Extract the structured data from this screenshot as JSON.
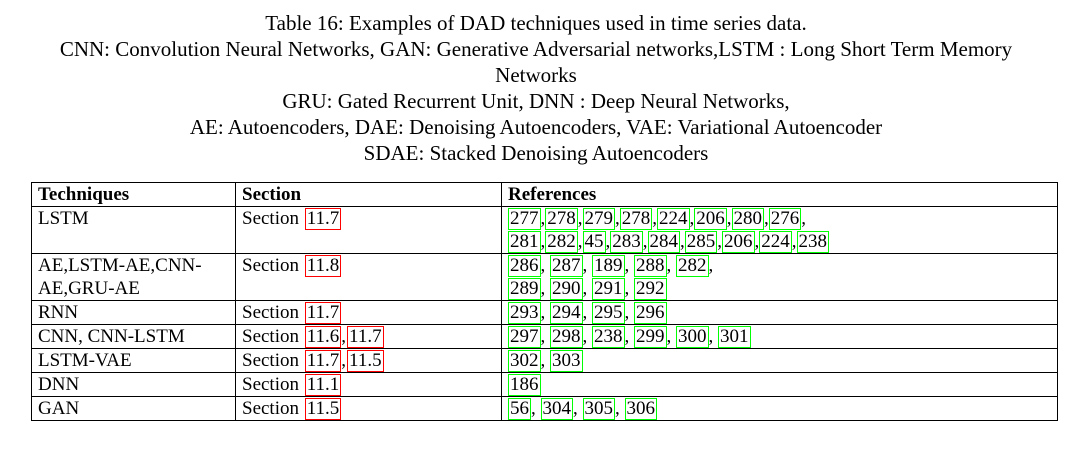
{
  "caption": {
    "line1": "Table 16: Examples of DAD techniques used in time series data.",
    "line2": "CNN: Convolution Neural Networks, GAN: Generative Adversarial networks,LSTM : Long Short Term Memory",
    "line3": "Networks",
    "line4": "GRU: Gated Recurrent Unit, DNN : Deep Neural Networks,",
    "line5": "AE: Autoencoders, DAE: Denoising Autoencoders, VAE: Variational Autoencoder",
    "line6": "SDAE: Stacked Denoising Autoencoders"
  },
  "table": {
    "headers": [
      "Techniques",
      "Section",
      "References"
    ],
    "section_word": "Section",
    "rows": [
      {
        "technique": "LSTM",
        "sections": [
          "11.7"
        ],
        "ref_lines": [
          [
            "277",
            "278",
            "279",
            "278",
            "224",
            "206",
            "280",
            "276"
          ],
          [
            "281",
            "282",
            "45",
            "283",
            "284",
            "285",
            "206",
            "224",
            "238"
          ]
        ],
        "ref_sep": ",",
        "trailing": ","
      },
      {
        "technique": "AE,LSTM-AE,CNN-AE,GRU-AE",
        "sections": [
          "11.8"
        ],
        "ref_lines": [
          [
            "286",
            "287",
            "189",
            "288",
            "282"
          ],
          [
            "289",
            "290",
            "291",
            "292"
          ]
        ],
        "ref_sep": ", ",
        "trailing": ","
      },
      {
        "technique": "RNN",
        "sections": [
          "11.7"
        ],
        "ref_lines": [
          [
            "293",
            "294",
            "295",
            "296"
          ]
        ],
        "ref_sep": ", "
      },
      {
        "technique": "CNN, CNN-LSTM",
        "sections": [
          "11.6",
          "11.7"
        ],
        "ref_lines": [
          [
            "297",
            "298",
            "238",
            "299",
            "300",
            "301"
          ]
        ],
        "ref_sep": ", "
      },
      {
        "technique": "LSTM-VAE",
        "sections": [
          "11.7",
          "11.5"
        ],
        "ref_lines": [
          [
            "302",
            "303"
          ]
        ],
        "ref_sep": ", "
      },
      {
        "technique": "DNN",
        "sections": [
          "11.1"
        ],
        "ref_lines": [
          [
            "186"
          ]
        ],
        "ref_sep": ", "
      },
      {
        "technique": "GAN",
        "sections": [
          "11.5"
        ],
        "ref_lines": [
          [
            "56",
            "304",
            "305",
            "306"
          ]
        ],
        "ref_sep": ", "
      }
    ]
  },
  "colors": {
    "section_link_box": "#ff0000",
    "citation_link_box": "#00ff00"
  }
}
